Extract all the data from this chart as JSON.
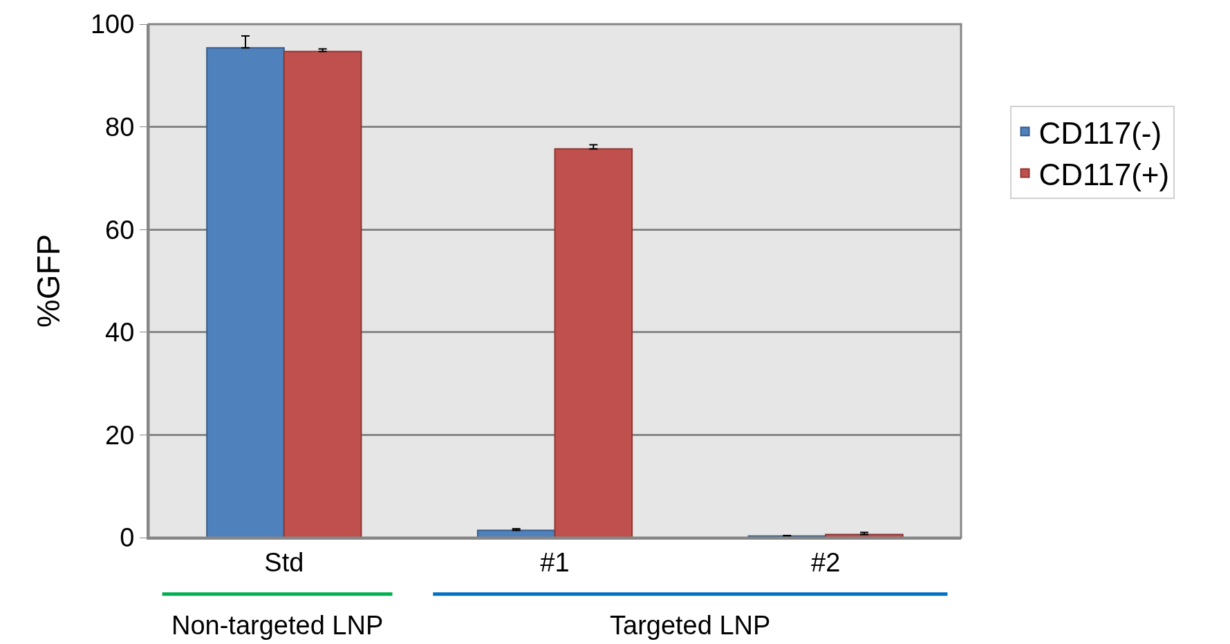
{
  "chart_data": {
    "type": "bar",
    "ylabel": "%GFP",
    "categories": [
      "Std",
      "#1",
      "#2"
    ],
    "series": [
      {
        "name": "CD117(-)",
        "color": "#4f81bd",
        "values": [
          95.4,
          1.4,
          0.3
        ],
        "errors": [
          2.3,
          0.3,
          0.1
        ]
      },
      {
        "name": "CD117(+)",
        "color": "#c0504d",
        "values": [
          94.7,
          75.7,
          0.6
        ],
        "errors": [
          0.5,
          0.8,
          0.4
        ]
      }
    ],
    "ylim": [
      0,
      100
    ],
    "yticks": [
      0,
      20,
      40,
      60,
      80,
      100
    ],
    "grid": "y",
    "legend": "right",
    "annotations": [
      "Non-targeted LNP",
      "Targeted LNP"
    ]
  }
}
